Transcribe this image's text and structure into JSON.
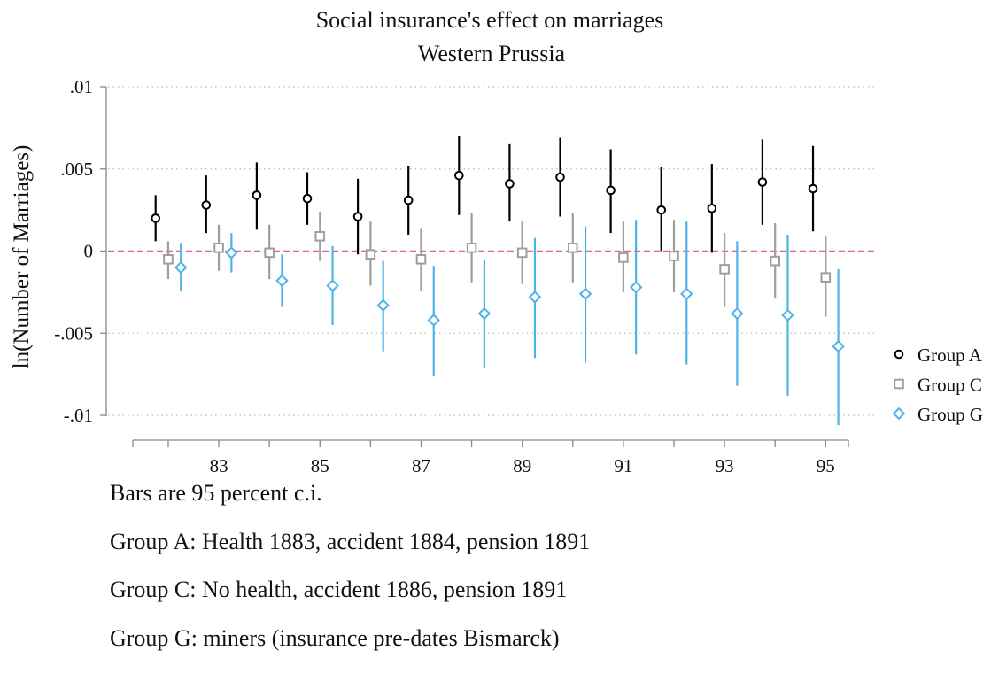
{
  "chart_data": {
    "type": "scatter",
    "title": "Social insurance's effect on marriages",
    "subtitle": "Western Prussia",
    "ylabel": "ln(Number of Marriages)",
    "xlabel": "",
    "ylim": [
      -0.01,
      0.01
    ],
    "xlim": [
      81.3,
      95.45
    ],
    "y_ticks": [
      {
        "value": 0.01,
        "label": ".01"
      },
      {
        "value": 0.005,
        "label": ".005"
      },
      {
        "value": 0,
        "label": "0"
      },
      {
        "value": -0.005,
        "label": "-.005"
      },
      {
        "value": -0.01,
        "label": "-.01"
      }
    ],
    "x_ticks": [
      {
        "value": 83,
        "label": "83"
      },
      {
        "value": 85,
        "label": "85"
      },
      {
        "value": 87,
        "label": "87"
      },
      {
        "value": 89,
        "label": "89"
      },
      {
        "value": 91,
        "label": "91"
      },
      {
        "value": 93,
        "label": "93"
      },
      {
        "value": 95,
        "label": "95"
      }
    ],
    "x_minor_ticks": [
      82,
      84,
      86,
      88,
      90,
      92,
      94
    ],
    "grid": true,
    "reference_line": 0,
    "legend_position": "right",
    "series": [
      {
        "name": "Group A",
        "marker": "circle",
        "color": "#000000",
        "x": [
          81.75,
          82.75,
          83.75,
          84.75,
          85.75,
          86.75,
          87.75,
          88.75,
          89.75,
          90.75,
          91.75,
          92.75,
          93.75,
          94.75
        ],
        "y": [
          0.002,
          0.0028,
          0.0034,
          0.0032,
          0.0021,
          0.0031,
          0.0046,
          0.0041,
          0.0045,
          0.0037,
          0.0025,
          0.0026,
          0.0042,
          0.0038
        ],
        "lo": [
          0.0006,
          0.0011,
          0.0013,
          0.0016,
          -0.0002,
          0.001,
          0.0022,
          0.0018,
          0.0021,
          0.0011,
          0.0,
          -0.0001,
          0.0016,
          0.0012
        ],
        "hi": [
          0.0034,
          0.0046,
          0.0054,
          0.0048,
          0.0044,
          0.0052,
          0.007,
          0.0065,
          0.0069,
          0.0062,
          0.0051,
          0.0053,
          0.0068,
          0.0064
        ]
      },
      {
        "name": "Group C",
        "marker": "square",
        "color": "#9e9e9e",
        "x": [
          82.0,
          83.0,
          84.0,
          85.0,
          86.0,
          87.0,
          88.0,
          89.0,
          90.0,
          91.0,
          92.0,
          93.0,
          94.0,
          95.0
        ],
        "y": [
          -0.0005,
          0.0002,
          -0.0001,
          0.0009,
          -0.0002,
          -0.0005,
          0.0002,
          -0.0001,
          0.0002,
          -0.0004,
          -0.0003,
          -0.0011,
          -0.0006,
          -0.0016
        ],
        "lo": [
          -0.0017,
          -0.0012,
          -0.0017,
          -0.0006,
          -0.0021,
          -0.0024,
          -0.0019,
          -0.002,
          -0.0019,
          -0.0025,
          -0.0025,
          -0.0034,
          -0.0029,
          -0.004
        ],
        "hi": [
          0.0006,
          0.0016,
          0.0016,
          0.0024,
          0.0018,
          0.0014,
          0.0023,
          0.0018,
          0.0023,
          0.0018,
          0.0019,
          0.0011,
          0.0017,
          0.0009
        ]
      },
      {
        "name": "Group G",
        "marker": "diamond",
        "color": "#4db3e6",
        "x": [
          82.25,
          83.25,
          84.25,
          85.25,
          86.25,
          87.25,
          88.25,
          89.25,
          90.25,
          91.25,
          92.25,
          93.25,
          94.25,
          95.25
        ],
        "y": [
          -0.001,
          -0.0001,
          -0.0018,
          -0.0021,
          -0.0033,
          -0.0042,
          -0.0038,
          -0.0028,
          -0.0026,
          -0.0022,
          -0.0026,
          -0.0038,
          -0.0039,
          -0.0058
        ],
        "lo": [
          -0.0024,
          -0.0013,
          -0.0034,
          -0.0045,
          -0.0061,
          -0.0076,
          -0.0071,
          -0.0065,
          -0.0068,
          -0.0063,
          -0.0069,
          -0.0082,
          -0.0088,
          -0.0106
        ],
        "hi": [
          0.0005,
          0.0011,
          -0.0002,
          0.0003,
          -0.0006,
          -0.0009,
          -0.0005,
          0.0008,
          0.0015,
          0.0019,
          0.0018,
          0.0006,
          0.001,
          -0.0011
        ]
      }
    ]
  },
  "notes": [
    "Bars are 95 percent c.i.",
    "Group A: Health 1883, accident 1884, pension 1891",
    "Group C: No health, accident 1886, pension 1891",
    "Group G: miners (insurance pre-dates Bismarck)"
  ],
  "colors": {
    "group_a": "#000000",
    "group_c": "#9e9e9e",
    "group_g": "#4db3e6",
    "reference_line": "#d9669a",
    "grid": "#bbbbbb",
    "axis": "#888888"
  }
}
